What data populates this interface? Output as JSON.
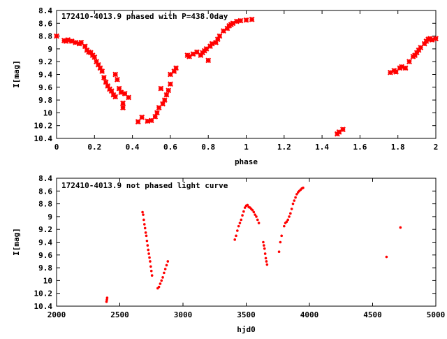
{
  "chart_data": [
    {
      "type": "scatter",
      "title": "172410-4013.9 phased with P=438.0day",
      "xlabel": "phase",
      "ylabel": "I[mag]",
      "xlim": [
        0,
        2
      ],
      "ylim": [
        10.4,
        8.4
      ],
      "y_inverted": true,
      "x_ticks": [
        "0",
        "0.2",
        "0.4",
        "0.6",
        "0.8",
        "1",
        "1.2",
        "1.4",
        "1.6",
        "1.8",
        "2"
      ],
      "y_ticks": [
        "8.4",
        "8.6",
        "8.8",
        "9",
        "9.2",
        "9.4",
        "9.6",
        "9.8",
        "10",
        "10.2",
        "10.4"
      ],
      "marker_color": "#ff0000",
      "marker": "cross",
      "series": [
        {
          "points": [
            [
              0.0,
              8.8
            ],
            [
              0.04,
              8.87
            ],
            [
              0.05,
              8.88
            ],
            [
              0.06,
              8.86
            ],
            [
              0.08,
              8.88
            ],
            [
              0.1,
              8.9
            ],
            [
              0.12,
              8.92
            ],
            [
              0.13,
              8.9
            ],
            [
              0.15,
              8.96
            ],
            [
              0.16,
              9.02
            ],
            [
              0.17,
              9.05
            ],
            [
              0.18,
              9.06
            ],
            [
              0.19,
              9.1
            ],
            [
              0.2,
              9.13
            ],
            [
              0.21,
              9.2
            ],
            [
              0.22,
              9.25
            ],
            [
              0.23,
              9.3
            ],
            [
              0.24,
              9.35
            ],
            [
              0.25,
              9.45
            ],
            [
              0.26,
              9.52
            ],
            [
              0.27,
              9.58
            ],
            [
              0.28,
              9.63
            ],
            [
              0.29,
              9.66
            ],
            [
              0.3,
              9.72
            ],
            [
              0.31,
              9.75
            ],
            [
              0.31,
              9.4
            ],
            [
              0.32,
              9.48
            ],
            [
              0.33,
              9.62
            ],
            [
              0.34,
              9.68
            ],
            [
              0.35,
              9.85
            ],
            [
              0.35,
              9.92
            ],
            [
              0.36,
              9.7
            ],
            [
              0.38,
              9.76
            ],
            [
              0.43,
              10.14
            ],
            [
              0.45,
              10.07
            ],
            [
              0.48,
              10.13
            ],
            [
              0.5,
              10.12
            ],
            [
              0.52,
              10.06
            ],
            [
              0.53,
              10.0
            ],
            [
              0.54,
              9.92
            ],
            [
              0.55,
              9.62
            ],
            [
              0.56,
              9.86
            ],
            [
              0.57,
              9.8
            ],
            [
              0.58,
              9.72
            ],
            [
              0.59,
              9.65
            ],
            [
              0.6,
              9.55
            ],
            [
              0.6,
              9.4
            ],
            [
              0.62,
              9.35
            ],
            [
              0.63,
              9.3
            ],
            [
              0.69,
              9.1
            ],
            [
              0.7,
              9.12
            ],
            [
              0.72,
              9.08
            ],
            [
              0.74,
              9.05
            ],
            [
              0.76,
              9.1
            ],
            [
              0.77,
              9.06
            ],
            [
              0.78,
              9.03
            ],
            [
              0.79,
              9.0
            ],
            [
              0.8,
              9.18
            ],
            [
              0.81,
              8.96
            ],
            [
              0.82,
              8.92
            ],
            [
              0.84,
              8.9
            ],
            [
              0.85,
              8.85
            ],
            [
              0.86,
              8.8
            ],
            [
              0.88,
              8.72
            ],
            [
              0.9,
              8.68
            ],
            [
              0.91,
              8.64
            ],
            [
              0.92,
              8.62
            ],
            [
              0.93,
              8.6
            ],
            [
              0.95,
              8.57
            ],
            [
              0.97,
              8.56
            ],
            [
              1.0,
              8.55
            ],
            [
              1.03,
              8.54
            ],
            [
              1.48,
              10.33
            ],
            [
              1.49,
              10.3
            ],
            [
              1.51,
              10.26
            ],
            [
              1.76,
              9.37
            ],
            [
              1.78,
              9.34
            ],
            [
              1.79,
              9.36
            ],
            [
              1.81,
              9.3
            ],
            [
              1.82,
              9.28
            ],
            [
              1.84,
              9.3
            ],
            [
              1.86,
              9.2
            ],
            [
              1.88,
              9.12
            ],
            [
              1.89,
              9.1
            ],
            [
              1.9,
              9.06
            ],
            [
              1.91,
              9.02
            ],
            [
              1.92,
              8.98
            ],
            [
              1.94,
              8.92
            ],
            [
              1.95,
              8.88
            ],
            [
              1.96,
              8.85
            ],
            [
              1.97,
              8.84
            ],
            [
              1.98,
              8.86
            ],
            [
              2.0,
              8.84
            ]
          ]
        }
      ]
    },
    {
      "type": "scatter",
      "title": "172410-4013.9 not phased light curve",
      "xlabel": "hjd0",
      "ylabel": "I[mag]",
      "xlim": [
        2000,
        5000
      ],
      "ylim": [
        10.4,
        8.4
      ],
      "y_inverted": true,
      "x_ticks": [
        "2000",
        "2500",
        "3000",
        "3500",
        "4000",
        "4500",
        "5000"
      ],
      "y_ticks": [
        "8.4",
        "8.6",
        "8.8",
        "9",
        "9.2",
        "9.4",
        "9.6",
        "9.8",
        "10",
        "10.2",
        "10.4"
      ],
      "marker_color": "#ff0000",
      "marker": "dot",
      "series": [
        {
          "points": [
            [
              2395,
              10.33
            ],
            [
              2398,
              10.3
            ],
            [
              2400,
              10.27
            ],
            [
              2680,
              8.93
            ],
            [
              2685,
              8.97
            ],
            [
              2690,
              9.05
            ],
            [
              2695,
              9.12
            ],
            [
              2700,
              9.18
            ],
            [
              2705,
              9.25
            ],
            [
              2710,
              9.3
            ],
            [
              2715,
              9.38
            ],
            [
              2720,
              9.45
            ],
            [
              2725,
              9.52
            ],
            [
              2730,
              9.58
            ],
            [
              2735,
              9.64
            ],
            [
              2740,
              9.7
            ],
            [
              2745,
              9.78
            ],
            [
              2750,
              9.85
            ],
            [
              2755,
              9.92
            ],
            [
              2800,
              10.12
            ],
            [
              2810,
              10.1
            ],
            [
              2820,
              10.05
            ],
            [
              2830,
              10.0
            ],
            [
              2840,
              9.95
            ],
            [
              2850,
              9.88
            ],
            [
              2860,
              9.82
            ],
            [
              2870,
              9.76
            ],
            [
              2880,
              9.7
            ],
            [
              3410,
              9.36
            ],
            [
              3420,
              9.3
            ],
            [
              3430,
              9.22
            ],
            [
              3440,
              9.15
            ],
            [
              3450,
              9.1
            ],
            [
              3460,
              9.05
            ],
            [
              3470,
              8.98
            ],
            [
              3480,
              8.92
            ],
            [
              3490,
              8.86
            ],
            [
              3500,
              8.83
            ],
            [
              3510,
              8.82
            ],
            [
              3520,
              8.85
            ],
            [
              3530,
              8.86
            ],
            [
              3540,
              8.88
            ],
            [
              3550,
              8.9
            ],
            [
              3560,
              8.93
            ],
            [
              3570,
              8.97
            ],
            [
              3580,
              9.0
            ],
            [
              3590,
              9.05
            ],
            [
              3600,
              9.1
            ],
            [
              3635,
              9.4
            ],
            [
              3640,
              9.45
            ],
            [
              3645,
              9.5
            ],
            [
              3650,
              9.58
            ],
            [
              3655,
              9.65
            ],
            [
              3660,
              9.7
            ],
            [
              3665,
              9.75
            ],
            [
              3760,
              9.55
            ],
            [
              3770,
              9.4
            ],
            [
              3780,
              9.3
            ],
            [
              3800,
              9.15
            ],
            [
              3810,
              9.1
            ],
            [
              3820,
              9.08
            ],
            [
              3830,
              9.05
            ],
            [
              3840,
              9.0
            ],
            [
              3850,
              8.95
            ],
            [
              3860,
              8.88
            ],
            [
              3870,
              8.8
            ],
            [
              3880,
              8.75
            ],
            [
              3890,
              8.7
            ],
            [
              3900,
              8.65
            ],
            [
              3910,
              8.62
            ],
            [
              3920,
              8.6
            ],
            [
              3930,
              8.58
            ],
            [
              3940,
              8.56
            ],
            [
              3950,
              8.55
            ],
            [
              4610,
              9.63
            ],
            [
              4720,
              9.17
            ]
          ]
        }
      ]
    }
  ]
}
